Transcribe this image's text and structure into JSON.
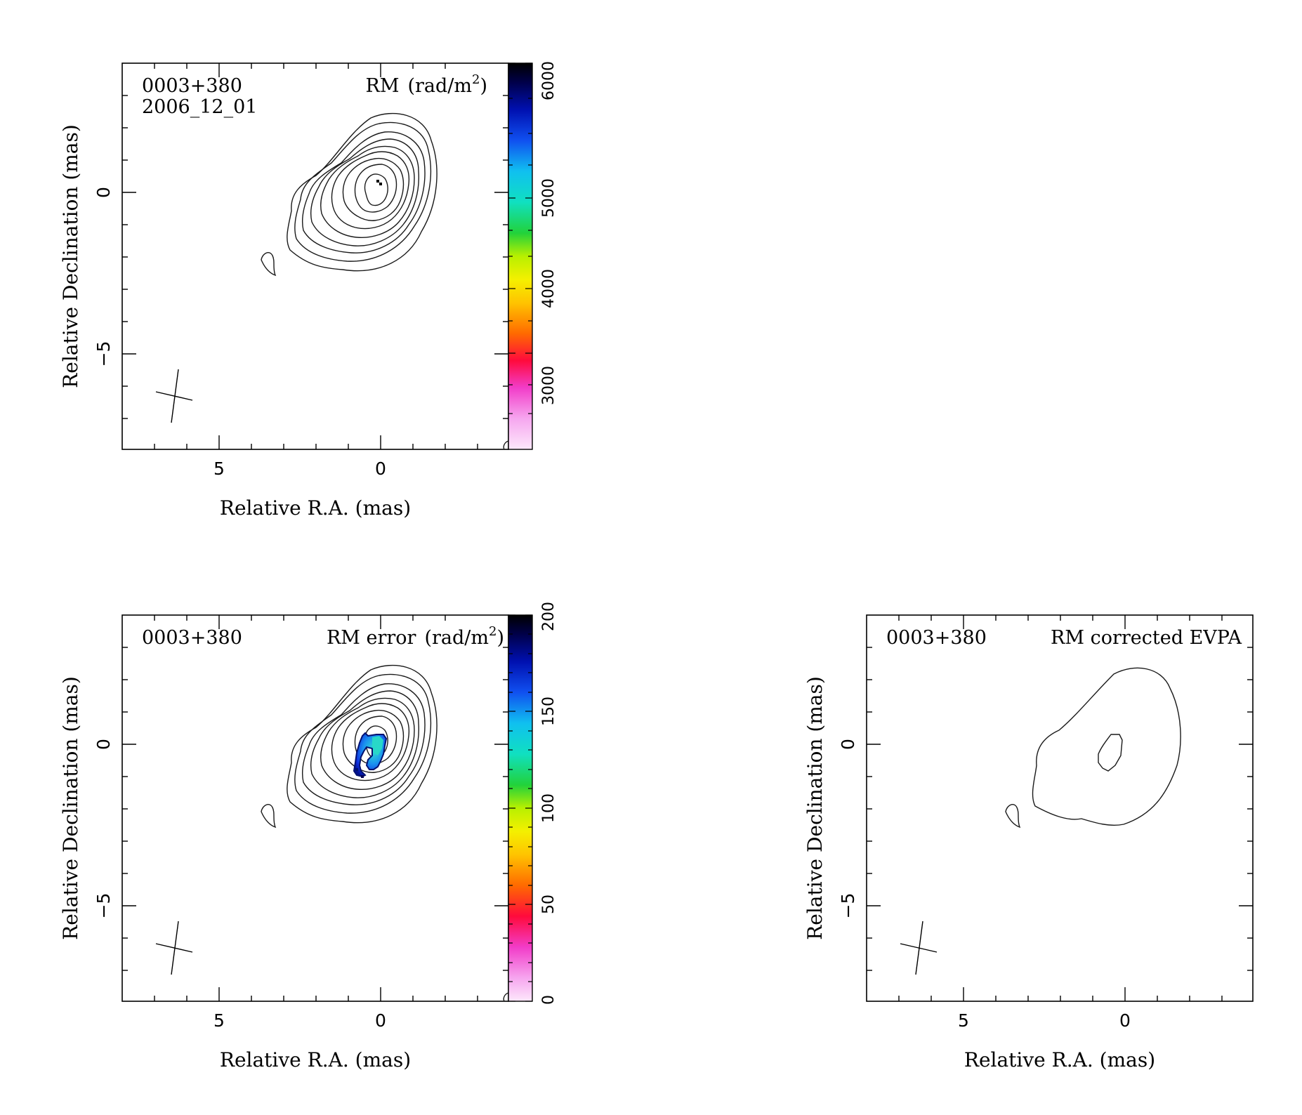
{
  "panels": [
    {
      "source": "0003+380",
      "epoch": "2006_12_01",
      "quantity": "RM",
      "unit_prefix": "(rad/m",
      "unit_exp": "2",
      "unit_suffix": ")",
      "xlabel": "Relative R.A. (mas)",
      "ylabel": "Relative Declination (mas)",
      "x_ticks": [
        "5",
        "0"
      ],
      "y_ticks": [
        "0",
        "−5"
      ],
      "colorbar_ticks": [
        "3000",
        "4000",
        "5000",
        "6000"
      ]
    },
    {
      "source": "0003+380",
      "quantity": "RM error",
      "unit_prefix": "(rad/m",
      "unit_exp": "2",
      "unit_suffix": ")",
      "xlabel": "Relative R.A. (mas)",
      "ylabel": "Relative Declination (mas)",
      "x_ticks": [
        "5",
        "0"
      ],
      "y_ticks": [
        "0",
        "−5"
      ],
      "colorbar_ticks": [
        "0",
        "50",
        "100",
        "150",
        "200"
      ]
    },
    {
      "source": "0003+380",
      "quantity": "RM corrected EVPA",
      "xlabel": "Relative R.A. (mas)",
      "ylabel": "Relative Declination (mas)",
      "x_ticks": [
        "5",
        "0"
      ],
      "y_ticks": [
        "0",
        "−5"
      ]
    }
  ],
  "chart_data": [
    {
      "type": "heatmap",
      "title": "RM (rad/m2)",
      "source": "0003+380",
      "epoch": "2006_12_01",
      "xlabel": "Relative R.A. (mas)",
      "ylabel": "Relative Declination (mas)",
      "xlim": [
        8,
        -4
      ],
      "ylim": [
        -8,
        4
      ],
      "colorbar_range": [
        2500,
        6000
      ],
      "colorbar_ticks": [
        3000,
        4000,
        5000,
        6000
      ],
      "contour_levels": 9,
      "beam_position": [
        6.4,
        -6.4
      ],
      "rm_pixels_near": [
        -0.05,
        0.25
      ],
      "rm_pixels_value": 6000
    },
    {
      "type": "heatmap",
      "title": "RM error (rad/m2)",
      "source": "0003+380",
      "xlabel": "Relative R.A. (mas)",
      "ylabel": "Relative Declination (mas)",
      "xlim": [
        8,
        -4
      ],
      "ylim": [
        -8,
        4
      ],
      "colorbar_range": [
        0,
        200
      ],
      "colorbar_ticks": [
        0,
        50,
        100,
        150,
        200
      ],
      "contour_levels": 9,
      "error_region_center": [
        0.3,
        -0.3
      ],
      "error_region_values_range": [
        120,
        200
      ]
    },
    {
      "type": "heatmap",
      "title": "RM corrected EVPA",
      "source": "0003+380",
      "xlabel": "Relative R.A. (mas)",
      "ylabel": "Relative Declination (mas)",
      "xlim": [
        8,
        -4
      ],
      "ylim": [
        -8,
        4
      ],
      "contour_levels": 2
    }
  ]
}
